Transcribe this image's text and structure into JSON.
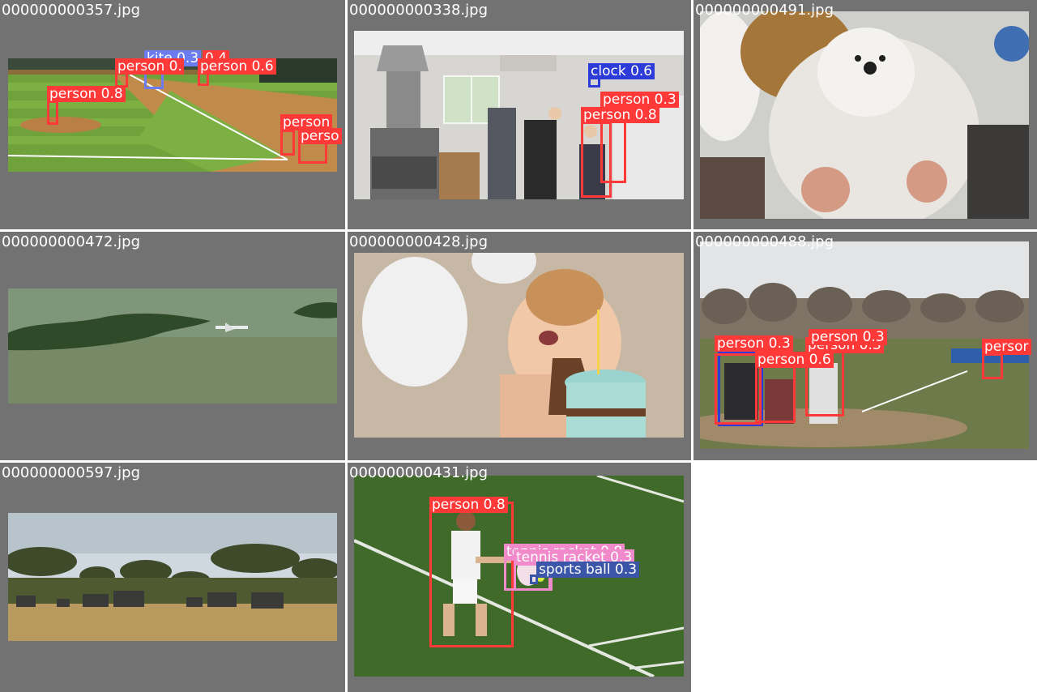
{
  "tiles": [
    {
      "file": "000000000357.jpg",
      "labels": {
        "l1": "kite 0.3",
        "l2": "person 0.",
        "l3": "0.4",
        "l4": "person 0.6",
        "l5": "person 0.8",
        "l6": "person",
        "l7": "perso"
      }
    },
    {
      "file": "000000000338.jpg",
      "labels": {
        "l1": "clock 0.6",
        "l2": "person 0.3",
        "l3": "person 0.8"
      }
    },
    {
      "file": "000000000491.jpg",
      "labels": {}
    },
    {
      "file": "000000000472.jpg",
      "labels": {}
    },
    {
      "file": "000000000428.jpg",
      "labels": {}
    },
    {
      "file": "000000000488.jpg",
      "labels": {
        "l1": "person 0.3",
        "l2": "person 0.3",
        "l3": "person 0.3",
        "l4": "person 0.6",
        "l5": "persor"
      }
    },
    {
      "file": "000000000597.jpg",
      "labels": {}
    },
    {
      "file": "000000000431.jpg",
      "labels": {
        "l1": "person 0.8",
        "l2": "tennis racket 0.8",
        "l3": "tennis racket 0.3",
        "l4": "sports ball 0.3"
      }
    }
  ],
  "colors": {
    "person": "#ff3838",
    "clock": "#2d3bd8",
    "kite": "#6a7cf0",
    "tennis_racket": "#f08acb",
    "sports_ball": "#3b55a8",
    "tile_bg": "#727272"
  }
}
